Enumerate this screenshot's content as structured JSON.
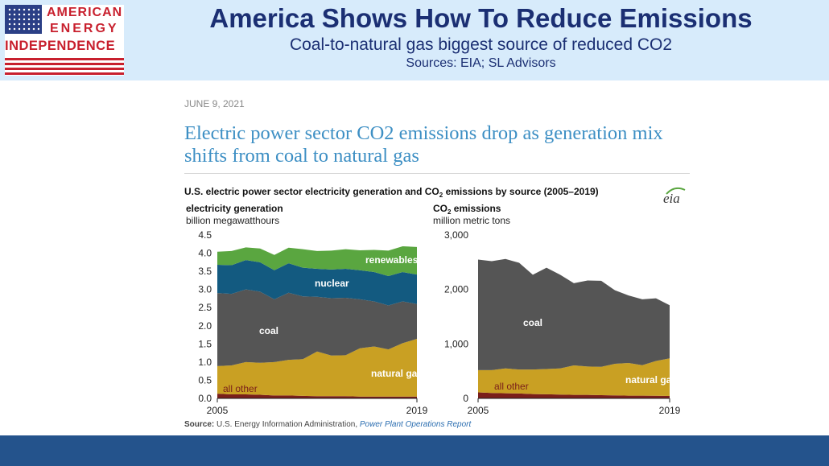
{
  "header": {
    "logo_line1": "AMERICAN",
    "logo_line2": "ENERGY",
    "logo_line3": "INDEPENDENCE",
    "title": "America Shows How To Reduce Emissions",
    "subtitle": "Coal-to-natural gas biggest source of reduced CO2",
    "sources": "Sources: EIA; SL Advisors"
  },
  "article": {
    "date": "JUNE 9, 2021",
    "headline": "Electric power sector CO2 emissions drop as generation mix shifts from coal to natural gas"
  },
  "figure": {
    "title_prefix": "U.S. electric power sector electricity generation and CO",
    "title_sub": "2",
    "title_suffix": " emissions by source (2005–2019)",
    "logo_text": "eia",
    "source_label": "Source:",
    "source_text": " U.S. Energy Information Administration, ",
    "source_link": "Power Plant Operations Report"
  },
  "colors": {
    "renewables": "#5aa640",
    "nuclear": "#135a80",
    "coal": "#555555",
    "natural_gas": "#c9a023",
    "all_other": "#7a1f1a",
    "header_bg": "#d7ebfb",
    "footer_bar": "#24538c",
    "title_navy": "#1b2f73"
  },
  "chart_data": [
    {
      "type": "area",
      "stacked": true,
      "title": "electricity generation",
      "ylabel": "billion megawatthours",
      "x": [
        2005,
        2006,
        2007,
        2008,
        2009,
        2010,
        2011,
        2012,
        2013,
        2014,
        2015,
        2016,
        2017,
        2018,
        2019
      ],
      "xticks": [
        "2005",
        "2019"
      ],
      "ylim": [
        0,
        4.5
      ],
      "yticks": [
        "0.0",
        "0.5",
        "1.0",
        "1.5",
        "2.0",
        "2.5",
        "3.0",
        "3.5",
        "4.0",
        "4.5"
      ],
      "grid": false,
      "legend": "inline labels",
      "series": [
        {
          "name": "all other",
          "key": "all_other",
          "values": [
            0.13,
            0.11,
            0.11,
            0.1,
            0.08,
            0.08,
            0.07,
            0.06,
            0.06,
            0.06,
            0.05,
            0.05,
            0.05,
            0.05,
            0.05
          ]
        },
        {
          "name": "natural gas",
          "key": "natural_gas",
          "values": [
            0.76,
            0.8,
            0.89,
            0.88,
            0.92,
            0.98,
            1.01,
            1.23,
            1.12,
            1.13,
            1.33,
            1.38,
            1.3,
            1.47,
            1.59
          ]
        },
        {
          "name": "coal",
          "key": "coal",
          "values": [
            2.01,
            1.97,
            2.0,
            1.96,
            1.73,
            1.85,
            1.73,
            1.51,
            1.58,
            1.58,
            1.35,
            1.24,
            1.21,
            1.15,
            0.96
          ]
        },
        {
          "name": "nuclear",
          "key": "nuclear",
          "values": [
            0.78,
            0.79,
            0.81,
            0.81,
            0.8,
            0.81,
            0.79,
            0.77,
            0.79,
            0.8,
            0.8,
            0.81,
            0.81,
            0.81,
            0.81
          ]
        },
        {
          "name": "renewables",
          "key": "renewables",
          "values": [
            0.36,
            0.39,
            0.35,
            0.38,
            0.42,
            0.43,
            0.51,
            0.49,
            0.52,
            0.54,
            0.55,
            0.61,
            0.7,
            0.71,
            0.76
          ]
        }
      ]
    },
    {
      "type": "area",
      "stacked": true,
      "title_prefix": "CO",
      "title_sub": "2",
      "title_suffix": " emissions",
      "ylabel": "million metric tons",
      "x": [
        2005,
        2006,
        2007,
        2008,
        2009,
        2010,
        2011,
        2012,
        2013,
        2014,
        2015,
        2016,
        2017,
        2018,
        2019
      ],
      "xticks": [
        "2005",
        "2019"
      ],
      "ylim": [
        0,
        3000
      ],
      "yticks": [
        "0",
        "1,000",
        "2,000",
        "3,000"
      ],
      "grid": false,
      "legend": "inline labels",
      "series": [
        {
          "name": "all other",
          "key": "all_other",
          "values": [
            110,
            100,
            95,
            90,
            80,
            75,
            70,
            65,
            65,
            60,
            55,
            50,
            50,
            48,
            45
          ]
        },
        {
          "name": "natural gas",
          "key": "natural_gas",
          "values": [
            410,
            420,
            455,
            440,
            450,
            465,
            480,
            540,
            520,
            520,
            580,
            600,
            560,
            640,
            690
          ]
        },
        {
          "name": "coal",
          "key": "coal",
          "values": [
            2030,
            2000,
            2010,
            1960,
            1740,
            1860,
            1720,
            1510,
            1580,
            1580,
            1350,
            1240,
            1210,
            1150,
            975
          ]
        }
      ]
    }
  ]
}
